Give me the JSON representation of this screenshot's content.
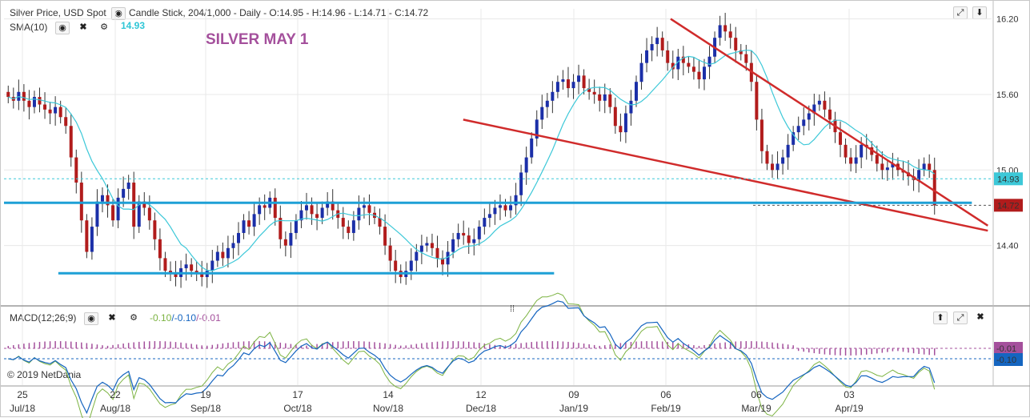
{
  "header": {
    "instrument": "Silver Price, USD Spot",
    "chart_desc": "Candle Stick, 204/1,000 - Daily - O:14.95 - H:14.96 - L:14.71 - C:14.72"
  },
  "sma": {
    "label": "SMA(10)",
    "value": "14.93",
    "color": "#2fc6d6"
  },
  "annotation": "SILVER MAY 1",
  "macd": {
    "label": "MACD(12;26;9)",
    "v1": "-0.10",
    "v2": "-0.10",
    "v3": "-0.01",
    "v1_color": "#7cb342",
    "v2_color": "#1565c0",
    "v3_color": "#a4509c"
  },
  "copyright": "© 2019 NetDania",
  "icons": {
    "eye": "eye-icon",
    "close": "close-icon",
    "gear": "gear-icon",
    "expand": "expand-icon",
    "down": "arrow-down-icon",
    "up": "arrow-up-icon",
    "drag": "drag-handle-icon"
  },
  "chart_data": {
    "type": "candlestick",
    "y_ticks": [
      "16.20",
      "15.60",
      "15.00",
      "14.40"
    ],
    "y_range": [
      13.94,
      16.28
    ],
    "price_badges": {
      "sma": "14.93",
      "close": "14.72"
    },
    "macd_badges": [
      "-0.01",
      "-0.10"
    ],
    "x_ticks": [
      {
        "day": "25",
        "month": "Jul/18"
      },
      {
        "day": "22",
        "month": "Aug/18"
      },
      {
        "day": "19",
        "month": "Sep/18"
      },
      {
        "day": "17",
        "month": "Oct/18"
      },
      {
        "day": "14",
        "month": "Nov/18"
      },
      {
        "day": "12",
        "month": "Dec/18"
      },
      {
        "day": "09",
        "month": "Jan/19"
      },
      {
        "day": "06",
        "month": "Feb/19"
      },
      {
        "day": "06",
        "month": "Mar/19"
      },
      {
        "day": "03",
        "month": "Apr/19"
      }
    ],
    "close_series": [
      15.58,
      15.55,
      15.62,
      15.55,
      15.5,
      15.58,
      15.52,
      15.48,
      15.45,
      15.5,
      15.42,
      15.35,
      15.1,
      14.9,
      14.6,
      14.35,
      14.55,
      14.75,
      14.8,
      14.72,
      14.6,
      14.78,
      14.85,
      14.9,
      14.55,
      14.75,
      14.7,
      14.6,
      14.45,
      14.3,
      14.2,
      14.18,
      14.15,
      14.22,
      14.25,
      14.2,
      14.18,
      14.15,
      14.2,
      14.28,
      14.35,
      14.3,
      14.38,
      14.42,
      14.5,
      14.6,
      14.55,
      14.65,
      14.72,
      14.7,
      14.78,
      14.62,
      14.45,
      14.4,
      14.5,
      14.6,
      14.68,
      14.72,
      14.65,
      14.62,
      14.7,
      14.75,
      14.68,
      14.62,
      14.55,
      14.5,
      14.6,
      14.7,
      14.72,
      14.66,
      14.62,
      14.55,
      14.4,
      14.28,
      14.2,
      14.15,
      14.2,
      14.28,
      14.35,
      14.4,
      14.42,
      14.38,
      14.3,
      14.25,
      14.35,
      14.45,
      14.5,
      14.48,
      14.42,
      14.45,
      14.55,
      14.62,
      14.65,
      14.7,
      14.72,
      14.68,
      14.72,
      14.8,
      14.98,
      15.1,
      15.25,
      15.4,
      15.5,
      15.55,
      15.62,
      15.7,
      15.72,
      15.65,
      15.7,
      15.75,
      15.65,
      15.62,
      15.6,
      15.55,
      15.6,
      15.5,
      15.35,
      15.3,
      15.45,
      15.55,
      15.7,
      15.85,
      15.95,
      16.0,
      16.05,
      15.95,
      15.85,
      15.8,
      15.9,
      15.85,
      15.82,
      15.78,
      15.72,
      15.82,
      15.9,
      16.05,
      16.15,
      16.1,
      16.05,
      15.95,
      15.92,
      15.85,
      15.7,
      15.4,
      15.15,
      15.05,
      15.0,
      15.05,
      15.1,
      15.2,
      15.3,
      15.35,
      15.4,
      15.45,
      15.52,
      15.55,
      15.48,
      15.4,
      15.3,
      15.2,
      15.1,
      15.05,
      15.1,
      15.2,
      15.18,
      15.12,
      15.05,
      15.0,
      15.02,
      15.05,
      15.0,
      14.98,
      14.95,
      14.92,
      15.0,
      15.05,
      15.0,
      14.72
    ],
    "trendlines": [
      {
        "name": "upper-wedge",
        "from": [
          0.675,
          16.2
        ],
        "to": [
          0.98,
          14.66
        ],
        "color": "#d02b2b"
      },
      {
        "name": "lower-wedge",
        "from": [
          0.465,
          15.4
        ],
        "to": [
          0.98,
          14.62
        ],
        "color": "#d02b2b"
      },
      {
        "name": "support-low",
        "from": [
          0.055,
          14.18
        ],
        "to": [
          0.557,
          14.18
        ],
        "color": "#1ea0d6"
      },
      {
        "name": "support-mid",
        "from": [
          0.0,
          14.74
        ],
        "to": [
          0.98,
          14.74
        ],
        "color": "#1ea0d6"
      }
    ],
    "grid": true
  }
}
